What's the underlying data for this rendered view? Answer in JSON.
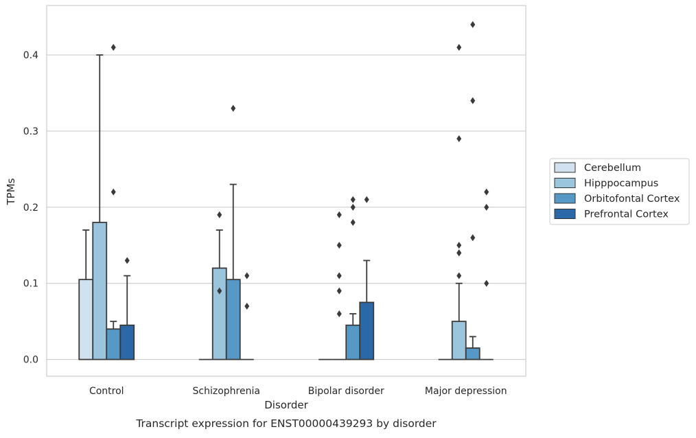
{
  "chart_data": {
    "type": "bar",
    "xlabel": "Disorder",
    "ylabel": "TPMs",
    "caption": "Transcript expression for ENST00000439293 by disorder",
    "categories": [
      "Control",
      "Schizophrenia",
      "Bipolar disorder",
      "Major depression"
    ],
    "ylim": [
      -0.022,
      0.465
    ],
    "yticks": [
      0.0,
      0.1,
      0.2,
      0.3,
      0.4
    ],
    "ytick_labels": [
      "0.0",
      "0.1",
      "0.2",
      "0.3",
      "0.4"
    ],
    "grid": true,
    "legend_position": "right",
    "series": [
      {
        "name": "Cerebellum",
        "color": "#d1e1ef",
        "values": [
          0.105,
          0.0,
          0.0,
          0.0
        ],
        "error_upper": [
          0.17,
          null,
          null,
          null
        ],
        "outliers": [
          [],
          [],
          [],
          []
        ]
      },
      {
        "name": "Hipppocampus",
        "color": "#9bc5dd",
        "values": [
          0.18,
          0.12,
          0.0,
          0.05
        ],
        "error_upper": [
          0.4,
          0.17,
          null,
          0.1
        ],
        "outliers": [
          [],
          [
            0.19,
            0.09
          ],
          [
            0.19,
            0.15,
            0.11,
            0.09,
            0.06
          ],
          [
            0.41,
            0.29,
            0.15,
            0.14,
            0.14,
            0.11
          ]
        ]
      },
      {
        "name": "Orbitofontal Cortex",
        "color": "#5698c6",
        "values": [
          0.04,
          0.105,
          0.045,
          0.015
        ],
        "error_upper": [
          0.05,
          0.23,
          0.06,
          0.03
        ],
        "outliers": [
          [
            0.41,
            0.22
          ],
          [
            0.33
          ],
          [
            0.21,
            0.2,
            0.18
          ],
          [
            0.44,
            0.34,
            0.16
          ]
        ]
      },
      {
        "name": "Prefrontal Cortex",
        "color": "#2a68a8",
        "values": [
          0.045,
          0.0,
          0.075,
          0.0
        ],
        "error_upper": [
          0.11,
          null,
          0.13,
          null
        ],
        "outliers": [
          [
            0.13
          ],
          [
            0.11,
            0.07
          ],
          [
            0.21
          ],
          [
            0.22,
            0.2,
            0.1
          ]
        ]
      }
    ]
  }
}
